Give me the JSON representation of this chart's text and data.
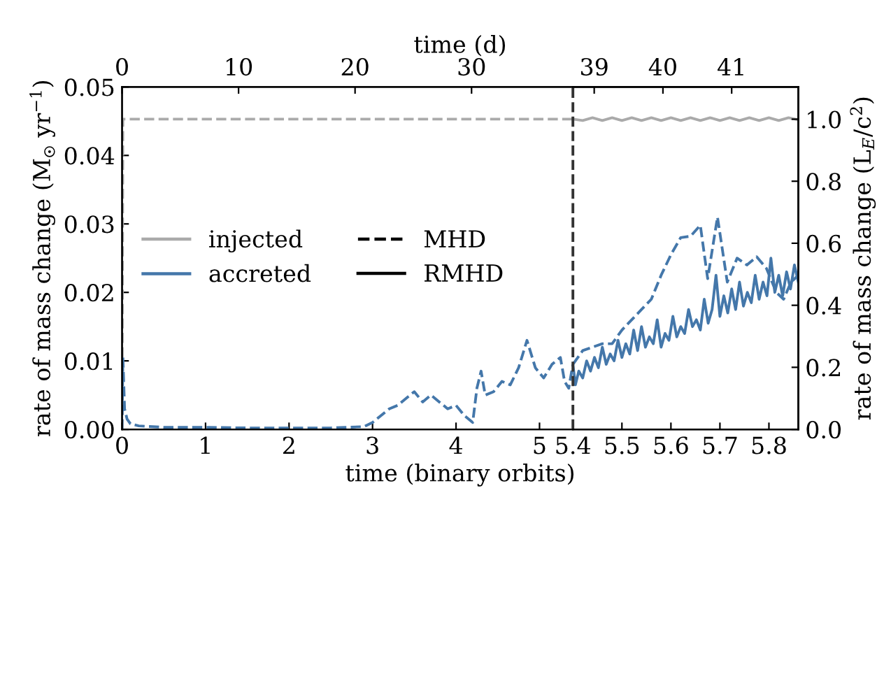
{
  "chart_data": [
    {
      "type": "line",
      "xlabel": "time (binary orbits)",
      "x2label": "time (d)",
      "ylabel": "rate of mass change (M$_{☉}$ yr$^{−1}$)",
      "xlim": [
        0,
        5.4
      ],
      "xticks": [
        0,
        1,
        2,
        3,
        4,
        5
      ],
      "x2lim": [
        0,
        38.7
      ],
      "x2ticks": [
        0,
        10,
        20,
        30
      ],
      "ylim": [
        0,
        0.05
      ],
      "yticks": [
        {
          "value": 0,
          "label": "0.00"
        },
        {
          "value": 0.01,
          "label": "0.01"
        },
        {
          "value": 0.02,
          "label": "0.02"
        },
        {
          "value": 0.03,
          "label": "0.03"
        },
        {
          "value": 0.04,
          "label": "0.04"
        },
        {
          "value": 0.05,
          "label": "0.05"
        }
      ],
      "grid": false,
      "legend": "center left",
      "marker": "none",
      "series": [
        {
          "name": "injected",
          "color": "#aaaaaa",
          "line_style": "dashed",
          "x": [
            0,
            0.01,
            1,
            2,
            3,
            4,
            5,
            5.4
          ],
          "values": [
            0,
            0.0453,
            0.0453,
            0.0453,
            0.0453,
            0.0453,
            0.0453,
            0.0453
          ]
        },
        {
          "name": "accreted",
          "color": "#4477aa",
          "line_style": "dashed",
          "x": [
            0,
            0.01,
            0.03,
            0.06,
            0.1,
            0.2,
            0.5,
            1,
            1.5,
            2,
            2.5,
            2.9,
            3.0,
            3.1,
            3.2,
            3.3,
            3.4,
            3.5,
            3.6,
            3.7,
            3.8,
            3.9,
            4.0,
            4.1,
            4.2,
            4.25,
            4.3,
            4.35,
            4.45,
            4.55,
            4.65,
            4.75,
            4.85,
            4.95,
            5.05,
            5.15,
            5.25,
            5.3,
            5.35,
            5.4
          ],
          "values": [
            0,
            0.0105,
            0.003,
            0.0015,
            0.0008,
            0.0005,
            0.0003,
            0.0003,
            0.0002,
            0.0002,
            0.0002,
            0.0004,
            0.001,
            0.002,
            0.003,
            0.0035,
            0.0045,
            0.0055,
            0.004,
            0.005,
            0.004,
            0.003,
            0.0035,
            0.002,
            0.001,
            0.006,
            0.0085,
            0.005,
            0.0055,
            0.007,
            0.0065,
            0.009,
            0.013,
            0.009,
            0.0075,
            0.0095,
            0.0105,
            0.007,
            0.006,
            0.0095
          ]
        },
        {
          "name": "MHD",
          "color": "#000000",
          "line_style": "dashed"
        },
        {
          "name": "RMHD",
          "color": "#000000",
          "line_style": "solid"
        }
      ]
    },
    {
      "type": "line",
      "xlim": [
        5.4,
        5.86
      ],
      "xticks": [
        5.4,
        5.5,
        5.6,
        5.7,
        5.8
      ],
      "x2lim": [
        38.69,
        41.97
      ],
      "x2ticks": [
        39,
        40,
        41
      ],
      "ylim": [
        0,
        0.05
      ],
      "tick_labels": "x",
      "y2label": "rate of mass change (L$_{E}$/c$^{2}$)",
      "y2lim": [
        0,
        1.104
      ],
      "y2ticks": [
        {
          "value": 0,
          "label": "0.0"
        },
        {
          "value": 0.2,
          "label": "0.2"
        },
        {
          "value": 0.4,
          "label": "0.4"
        },
        {
          "value": 0.6,
          "label": "0.6"
        },
        {
          "value": 0.8,
          "label": "0.8"
        },
        {
          "value": 1,
          "label": "1.0"
        }
      ],
      "grid": false,
      "marker": "none",
      "ref_lines": [
        {
          "axis": "x",
          "value": 5.4,
          "color": "#333333",
          "line_style": "dashed"
        }
      ],
      "series": [
        {
          "color": "#aaaaaa",
          "line_style": "solid",
          "x": [
            5.4,
            5.42,
            5.44,
            5.46,
            5.48,
            5.5,
            5.52,
            5.54,
            5.56,
            5.58,
            5.6,
            5.62,
            5.64,
            5.66,
            5.68,
            5.7,
            5.72,
            5.74,
            5.76,
            5.78,
            5.8,
            5.82,
            5.84,
            5.86
          ],
          "values": [
            0.0453,
            0.0451,
            0.0455,
            0.0451,
            0.0455,
            0.0451,
            0.0455,
            0.0451,
            0.0455,
            0.0451,
            0.0455,
            0.0451,
            0.0455,
            0.0451,
            0.0455,
            0.0451,
            0.0455,
            0.0451,
            0.0455,
            0.0451,
            0.0455,
            0.0451,
            0.0455,
            0.0452
          ]
        },
        {
          "color": "#4477aa",
          "line_style": "solid",
          "x": [
            5.4,
            5.405,
            5.412,
            5.42,
            5.428,
            5.436,
            5.444,
            5.452,
            5.46,
            5.468,
            5.476,
            5.484,
            5.492,
            5.5,
            5.508,
            5.516,
            5.524,
            5.532,
            5.54,
            5.548,
            5.556,
            5.564,
            5.572,
            5.58,
            5.588,
            5.596,
            5.604,
            5.612,
            5.62,
            5.628,
            5.636,
            5.644,
            5.652,
            5.66,
            5.668,
            5.676,
            5.684,
            5.692,
            5.7,
            5.708,
            5.716,
            5.724,
            5.732,
            5.74,
            5.748,
            5.756,
            5.764,
            5.772,
            5.78,
            5.788,
            5.796,
            5.804,
            5.812,
            5.82,
            5.828,
            5.836,
            5.844,
            5.852,
            5.86
          ],
          "values": [
            0.0095,
            0.0065,
            0.0085,
            0.0075,
            0.01,
            0.0085,
            0.0105,
            0.009,
            0.012,
            0.0095,
            0.011,
            0.01,
            0.013,
            0.0105,
            0.0125,
            0.011,
            0.0145,
            0.0115,
            0.015,
            0.012,
            0.0135,
            0.0125,
            0.016,
            0.012,
            0.014,
            0.013,
            0.0165,
            0.0135,
            0.015,
            0.014,
            0.0175,
            0.015,
            0.016,
            0.0145,
            0.019,
            0.0155,
            0.0175,
            0.0225,
            0.0165,
            0.0195,
            0.017,
            0.0205,
            0.0175,
            0.0215,
            0.018,
            0.02,
            0.0185,
            0.0225,
            0.019,
            0.0215,
            0.0195,
            0.025,
            0.02,
            0.0225,
            0.0195,
            0.023,
            0.0205,
            0.024,
            0.0215
          ]
        },
        {
          "color": "#4477aa",
          "line_style": "dashed",
          "x": [
            5.4,
            5.42,
            5.44,
            5.46,
            5.48,
            5.5,
            5.52,
            5.54,
            5.56,
            5.58,
            5.6,
            5.62,
            5.64,
            5.66,
            5.675,
            5.695,
            5.715,
            5.735,
            5.755,
            5.775,
            5.795,
            5.815,
            5.83,
            5.845,
            5.86
          ],
          "values": [
            0.0095,
            0.0115,
            0.012,
            0.0125,
            0.0125,
            0.0145,
            0.016,
            0.0175,
            0.019,
            0.0225,
            0.0255,
            0.028,
            0.0282,
            0.0298,
            0.022,
            0.031,
            0.0215,
            0.025,
            0.024,
            0.0252,
            0.0235,
            0.02,
            0.019,
            0.0215,
            0.0225
          ]
        }
      ]
    }
  ]
}
